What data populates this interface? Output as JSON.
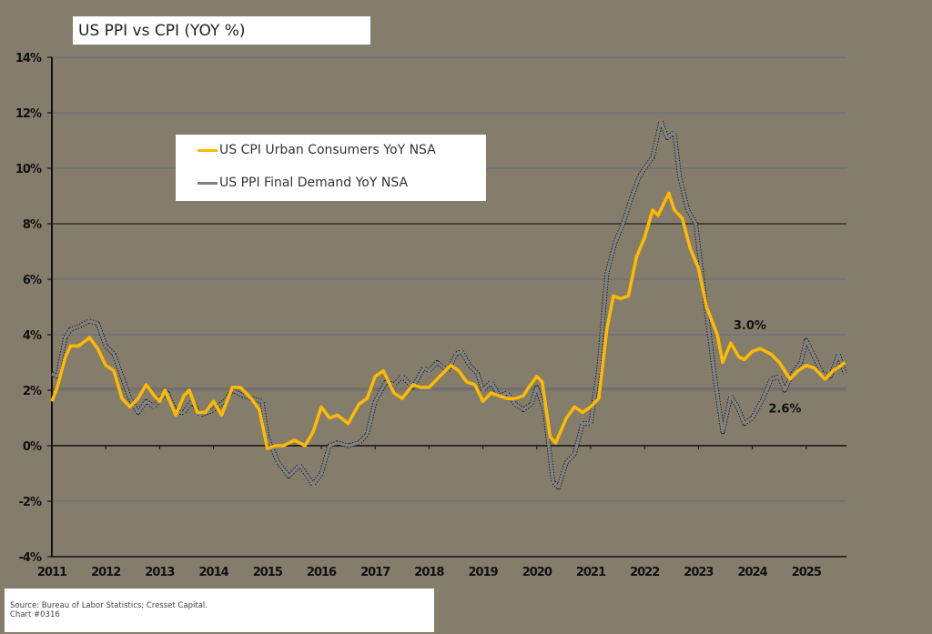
{
  "title": "US PPI vs CPI (YOY %)",
  "legend": [
    {
      "label": "US CPI Urban Consumers YoY NSA",
      "color": "#ffba00"
    },
    {
      "label": "US PPI Final Demand YoY NSA",
      "color": "#808080"
    }
  ],
  "source": {
    "line1": "Source: Bureau of Labor Statistics; Cresset Capital.",
    "line2": "Chart #0316"
  },
  "annotations": [
    {
      "text": "3.0%",
      "series": "CPI"
    },
    {
      "text": "2.6%",
      "series": "PPI"
    }
  ],
  "colors": {
    "background": "#847d6c",
    "cpi": "#ffba00",
    "ppi": "#808080",
    "grid": "#737478"
  },
  "chart_data": {
    "type": "line",
    "title": "US PPI vs CPI (YOY %)",
    "xlabel": "",
    "ylabel": "",
    "ylim": [
      -4,
      14
    ],
    "yticks": [
      "14%",
      "12%",
      "10%",
      "8%",
      "6%",
      "4%",
      "2%",
      "0%",
      "-2%",
      "-4%"
    ],
    "xticks": [
      "2011",
      "2012",
      "2013",
      "2014",
      "2015",
      "2016",
      "2017",
      "2018",
      "2019",
      "2020",
      "2021",
      "2022",
      "2023",
      "2024",
      "2025"
    ],
    "grid": true,
    "legend_position": "upper-left-inset",
    "series": [
      {
        "name": "US CPI Urban Consumers YoY NSA",
        "points": [
          [
            2011.0,
            1.6
          ],
          [
            2011.1,
            2.1
          ],
          [
            2011.25,
            3.2
          ],
          [
            2011.35,
            3.6
          ],
          [
            2011.5,
            3.6
          ],
          [
            2011.7,
            3.9
          ],
          [
            2011.85,
            3.5
          ],
          [
            2012.0,
            2.9
          ],
          [
            2012.15,
            2.7
          ],
          [
            2012.3,
            1.7
          ],
          [
            2012.45,
            1.4
          ],
          [
            2012.6,
            1.7
          ],
          [
            2012.75,
            2.2
          ],
          [
            2012.9,
            1.8
          ],
          [
            2013.0,
            1.6
          ],
          [
            2013.1,
            2.0
          ],
          [
            2013.3,
            1.1
          ],
          [
            2013.45,
            1.8
          ],
          [
            2013.55,
            2.0
          ],
          [
            2013.7,
            1.2
          ],
          [
            2013.85,
            1.2
          ],
          [
            2014.0,
            1.6
          ],
          [
            2014.15,
            1.1
          ],
          [
            2014.35,
            2.1
          ],
          [
            2014.5,
            2.1
          ],
          [
            2014.7,
            1.7
          ],
          [
            2014.85,
            1.3
          ],
          [
            2015.0,
            -0.1
          ],
          [
            2015.15,
            0.0
          ],
          [
            2015.3,
            0.0
          ],
          [
            2015.5,
            0.2
          ],
          [
            2015.7,
            0.0
          ],
          [
            2015.85,
            0.5
          ],
          [
            2016.0,
            1.4
          ],
          [
            2016.15,
            1.0
          ],
          [
            2016.3,
            1.1
          ],
          [
            2016.5,
            0.8
          ],
          [
            2016.7,
            1.5
          ],
          [
            2016.85,
            1.7
          ],
          [
            2017.0,
            2.5
          ],
          [
            2017.15,
            2.7
          ],
          [
            2017.35,
            1.9
          ],
          [
            2017.5,
            1.7
          ],
          [
            2017.7,
            2.2
          ],
          [
            2017.85,
            2.1
          ],
          [
            2018.0,
            2.1
          ],
          [
            2018.2,
            2.5
          ],
          [
            2018.4,
            2.9
          ],
          [
            2018.55,
            2.7
          ],
          [
            2018.7,
            2.3
          ],
          [
            2018.85,
            2.2
          ],
          [
            2019.0,
            1.6
          ],
          [
            2019.15,
            1.9
          ],
          [
            2019.3,
            1.8
          ],
          [
            2019.45,
            1.7
          ],
          [
            2019.6,
            1.7
          ],
          [
            2019.75,
            1.8
          ],
          [
            2019.85,
            2.1
          ],
          [
            2020.0,
            2.5
          ],
          [
            2020.1,
            2.3
          ],
          [
            2020.25,
            0.3
          ],
          [
            2020.35,
            0.1
          ],
          [
            2020.55,
            1.0
          ],
          [
            2020.7,
            1.4
          ],
          [
            2020.85,
            1.2
          ],
          [
            2021.0,
            1.4
          ],
          [
            2021.15,
            1.7
          ],
          [
            2021.3,
            4.2
          ],
          [
            2021.42,
            5.4
          ],
          [
            2021.55,
            5.3
          ],
          [
            2021.7,
            5.4
          ],
          [
            2021.85,
            6.8
          ],
          [
            2022.0,
            7.5
          ],
          [
            2022.15,
            8.5
          ],
          [
            2022.25,
            8.3
          ],
          [
            2022.45,
            9.1
          ],
          [
            2022.55,
            8.5
          ],
          [
            2022.7,
            8.2
          ],
          [
            2022.85,
            7.1
          ],
          [
            2023.0,
            6.4
          ],
          [
            2023.15,
            5.0
          ],
          [
            2023.35,
            4.0
          ],
          [
            2023.45,
            3.0
          ],
          [
            2023.6,
            3.7
          ],
          [
            2023.75,
            3.2
          ],
          [
            2023.85,
            3.1
          ],
          [
            2024.0,
            3.4
          ],
          [
            2024.15,
            3.5
          ],
          [
            2024.35,
            3.3
          ],
          [
            2024.5,
            3.0
          ],
          [
            2024.7,
            2.4
          ],
          [
            2024.85,
            2.7
          ],
          [
            2025.0,
            2.9
          ],
          [
            2025.15,
            2.8
          ],
          [
            2025.35,
            2.4
          ],
          [
            2025.5,
            2.7
          ],
          [
            2025.65,
            2.9
          ],
          [
            2025.72,
            3.0
          ]
        ]
      },
      {
        "name": "US PPI Final Demand YoY NSA",
        "points": [
          [
            2011.0,
            2.6
          ],
          [
            2011.1,
            2.5
          ],
          [
            2011.25,
            3.9
          ],
          [
            2011.35,
            4.2
          ],
          [
            2011.5,
            4.3
          ],
          [
            2011.7,
            4.5
          ],
          [
            2011.85,
            4.4
          ],
          [
            2012.0,
            3.6
          ],
          [
            2012.15,
            3.3
          ],
          [
            2012.3,
            2.5
          ],
          [
            2012.45,
            1.7
          ],
          [
            2012.6,
            1.2
          ],
          [
            2012.75,
            1.6
          ],
          [
            2012.9,
            1.4
          ],
          [
            2013.0,
            1.7
          ],
          [
            2013.15,
            1.9
          ],
          [
            2013.3,
            1.2
          ],
          [
            2013.45,
            1.2
          ],
          [
            2013.6,
            1.6
          ],
          [
            2013.75,
            1.1
          ],
          [
            2013.9,
            1.2
          ],
          [
            2014.0,
            1.3
          ],
          [
            2014.2,
            1.6
          ],
          [
            2014.35,
            2.0
          ],
          [
            2014.55,
            1.8
          ],
          [
            2014.7,
            1.7
          ],
          [
            2014.9,
            1.6
          ],
          [
            2015.0,
            0.3
          ],
          [
            2015.2,
            -0.6
          ],
          [
            2015.4,
            -1.1
          ],
          [
            2015.6,
            -0.7
          ],
          [
            2015.85,
            -1.4
          ],
          [
            2016.0,
            -1.0
          ],
          [
            2016.15,
            0.0
          ],
          [
            2016.3,
            0.1
          ],
          [
            2016.5,
            0.0
          ],
          [
            2016.7,
            0.1
          ],
          [
            2016.85,
            0.4
          ],
          [
            2017.0,
            1.6
          ],
          [
            2017.2,
            2.3
          ],
          [
            2017.35,
            2.2
          ],
          [
            2017.5,
            2.5
          ],
          [
            2017.7,
            2.1
          ],
          [
            2017.9,
            2.8
          ],
          [
            2018.0,
            2.7
          ],
          [
            2018.15,
            3.0
          ],
          [
            2018.35,
            2.7
          ],
          [
            2018.5,
            3.3
          ],
          [
            2018.6,
            3.4
          ],
          [
            2018.75,
            2.9
          ],
          [
            2018.9,
            2.6
          ],
          [
            2019.0,
            2.0
          ],
          [
            2019.15,
            2.3
          ],
          [
            2019.3,
            1.8
          ],
          [
            2019.45,
            1.9
          ],
          [
            2019.6,
            1.5
          ],
          [
            2019.75,
            1.3
          ],
          [
            2019.9,
            1.5
          ],
          [
            2020.0,
            2.1
          ],
          [
            2020.15,
            1.2
          ],
          [
            2020.3,
            -1.3
          ],
          [
            2020.4,
            -1.5
          ],
          [
            2020.55,
            -0.6
          ],
          [
            2020.7,
            -0.3
          ],
          [
            2020.85,
            0.8
          ],
          [
            2021.0,
            0.8
          ],
          [
            2021.15,
            2.8
          ],
          [
            2021.3,
            6.2
          ],
          [
            2021.45,
            7.3
          ],
          [
            2021.6,
            8.0
          ],
          [
            2021.75,
            8.9
          ],
          [
            2021.9,
            9.7
          ],
          [
            2022.0,
            10.0
          ],
          [
            2022.15,
            10.4
          ],
          [
            2022.3,
            11.7
          ],
          [
            2022.42,
            11.1
          ],
          [
            2022.55,
            11.3
          ],
          [
            2022.65,
            9.7
          ],
          [
            2022.8,
            8.5
          ],
          [
            2022.95,
            8.0
          ],
          [
            2023.05,
            6.4
          ],
          [
            2023.15,
            4.8
          ],
          [
            2023.3,
            2.5
          ],
          [
            2023.45,
            0.5
          ],
          [
            2023.6,
            1.8
          ],
          [
            2023.75,
            1.3
          ],
          [
            2023.85,
            0.8
          ],
          [
            2024.0,
            1.0
          ],
          [
            2024.2,
            1.7
          ],
          [
            2024.35,
            2.4
          ],
          [
            2024.5,
            2.5
          ],
          [
            2024.6,
            2.0
          ],
          [
            2024.75,
            2.6
          ],
          [
            2024.9,
            3.0
          ],
          [
            2025.0,
            3.8
          ],
          [
            2025.15,
            3.2
          ],
          [
            2025.3,
            2.6
          ],
          [
            2025.45,
            2.5
          ],
          [
            2025.6,
            3.3
          ],
          [
            2025.72,
            2.6
          ]
        ]
      }
    ],
    "annotations": [
      {
        "text": "3.0%",
        "x": 2023.65,
        "y": 4.2
      },
      {
        "text": "2.6%",
        "x": 2024.3,
        "y": 1.2
      }
    ]
  }
}
